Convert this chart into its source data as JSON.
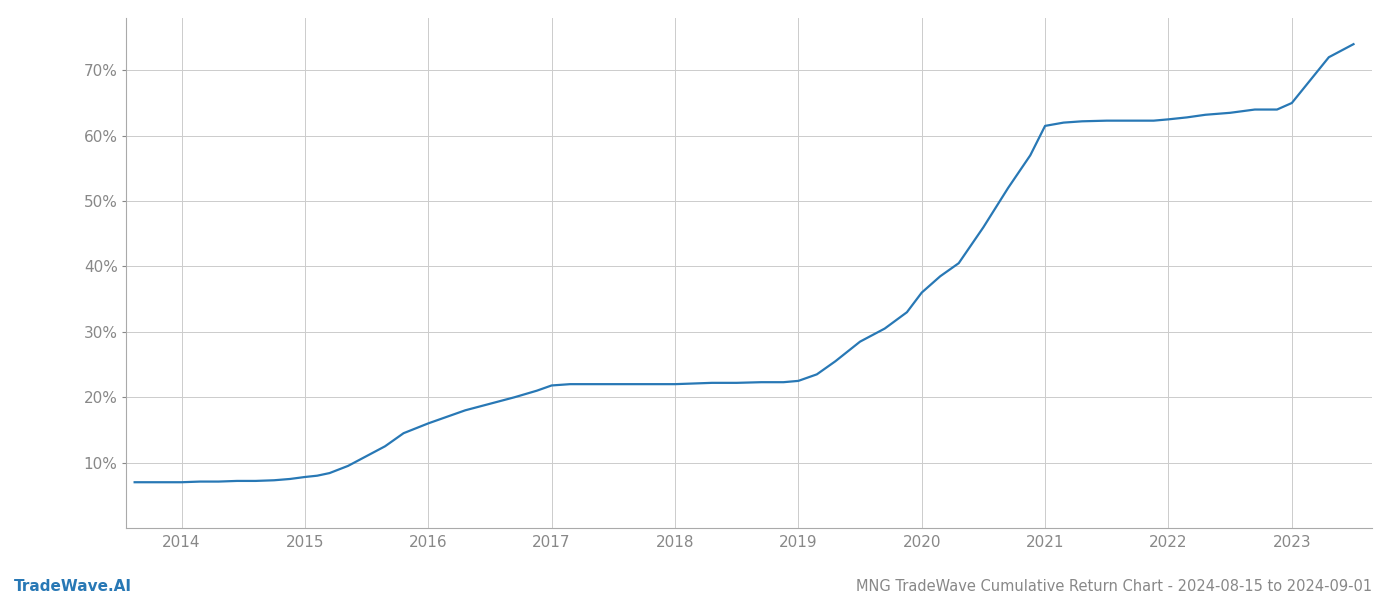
{
  "title": "MNG TradeWave Cumulative Return Chart - 2024-08-15 to 2024-09-01",
  "watermark": "TradeWave.AI",
  "line_color": "#2878b5",
  "background_color": "#ffffff",
  "grid_color": "#cccccc",
  "x_years": [
    2014,
    2015,
    2016,
    2017,
    2018,
    2019,
    2020,
    2021,
    2022,
    2023
  ],
  "x_values": [
    2013.62,
    2013.75,
    2013.88,
    2014.0,
    2014.15,
    2014.3,
    2014.45,
    2014.6,
    2014.75,
    2014.88,
    2015.0,
    2015.1,
    2015.2,
    2015.35,
    2015.5,
    2015.65,
    2015.8,
    2016.0,
    2016.15,
    2016.3,
    2016.5,
    2016.7,
    2016.88,
    2017.0,
    2017.15,
    2017.3,
    2017.5,
    2017.7,
    2017.88,
    2018.0,
    2018.15,
    2018.3,
    2018.5,
    2018.7,
    2018.88,
    2019.0,
    2019.15,
    2019.3,
    2019.5,
    2019.7,
    2019.88,
    2020.0,
    2020.15,
    2020.3,
    2020.5,
    2020.7,
    2020.88,
    2021.0,
    2021.15,
    2021.3,
    2021.5,
    2021.7,
    2021.88,
    2022.0,
    2022.15,
    2022.3,
    2022.5,
    2022.7,
    2022.88,
    2023.0,
    2023.15,
    2023.3,
    2023.5
  ],
  "y_values": [
    7.0,
    7.0,
    7.0,
    7.0,
    7.1,
    7.1,
    7.2,
    7.2,
    7.3,
    7.5,
    7.8,
    8.0,
    8.4,
    9.5,
    11.0,
    12.5,
    14.5,
    16.0,
    17.0,
    18.0,
    19.0,
    20.0,
    21.0,
    21.8,
    22.0,
    22.0,
    22.0,
    22.0,
    22.0,
    22.0,
    22.1,
    22.2,
    22.2,
    22.3,
    22.3,
    22.5,
    23.5,
    25.5,
    28.5,
    30.5,
    33.0,
    36.0,
    38.5,
    40.5,
    46.0,
    52.0,
    57.0,
    61.5,
    62.0,
    62.2,
    62.3,
    62.3,
    62.3,
    62.5,
    62.8,
    63.2,
    63.5,
    64.0,
    64.0,
    65.0,
    68.5,
    72.0,
    74.0
  ],
  "ylim": [
    0,
    78
  ],
  "yticks": [
    10,
    20,
    30,
    40,
    50,
    60,
    70
  ],
  "xlim": [
    2013.55,
    2023.65
  ],
  "title_fontsize": 10.5,
  "watermark_fontsize": 11,
  "tick_fontsize": 11,
  "line_width": 1.6
}
